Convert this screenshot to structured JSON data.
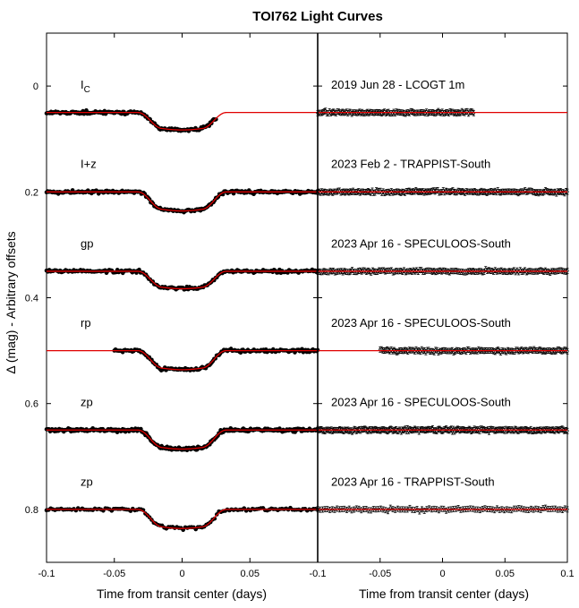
{
  "chart_data": {
    "type": "scatter",
    "title": "TOI762 Light Curves",
    "ylabel": "Δ (mag) - Arbitrary offsets",
    "ylim": [
      -0.1,
      0.9
    ],
    "y_inverted": true,
    "yticks": [
      "0",
      "0.2",
      "0.4",
      "0.6",
      "0.8"
    ],
    "panels": [
      {
        "name": "light curves",
        "xlabel": "Time from transit center (days)",
        "xlim": [
          -0.1,
          0.1
        ],
        "xticks": [
          "-0.1",
          "-0.05",
          "0",
          "0.05"
        ]
      },
      {
        "name": "residuals",
        "xlabel": "Time from transit center (days)",
        "xlim": [
          -0.1,
          0.1
        ],
        "xticks": [
          "-0.1",
          "-0.05",
          "0",
          "0.05",
          "0.1"
        ]
      }
    ],
    "transit_duration_days": 0.047,
    "transit_depth_mag": 0.035,
    "series": [
      {
        "band": "Iₑ",
        "band_main": "I",
        "band_sub": "C",
        "observation": "2019 Jun 28 - LCOGT 1m",
        "offset": 0.05,
        "depth": 0.033,
        "data_x_range": [
          -0.1,
          0.025
        ],
        "residual_x_range": [
          -0.1,
          0.025
        ],
        "points": 150
      },
      {
        "band": "I+z",
        "band_main": "I+z",
        "band_sub": "",
        "observation": "2023 Feb 2 - TRAPPIST-South",
        "offset": 0.2,
        "depth": 0.036,
        "data_x_range": [
          -0.1,
          0.1
        ],
        "residual_x_range": [
          -0.1,
          0.1
        ],
        "points": 230
      },
      {
        "band": "gp",
        "band_main": "gp",
        "band_sub": "",
        "observation": "2023 Apr 16 - SPECULOOS-South",
        "offset": 0.35,
        "depth": 0.033,
        "data_x_range": [
          -0.1,
          0.1
        ],
        "residual_x_range": [
          -0.1,
          0.1
        ],
        "points": 200
      },
      {
        "band": "rp",
        "band_main": "rp",
        "band_sub": "",
        "observation": "2023 Apr 16 - SPECULOOS-South",
        "offset": 0.5,
        "depth": 0.036,
        "data_x_range": [
          -0.05,
          0.1
        ],
        "residual_x_range": [
          -0.05,
          0.1
        ],
        "points": 170
      },
      {
        "band": "zp",
        "band_main": "zp",
        "band_sub": "",
        "observation": "2023 Apr 16 - SPECULOOS-South",
        "offset": 0.65,
        "depth": 0.036,
        "data_x_range": [
          -0.1,
          0.1
        ],
        "residual_x_range": [
          -0.1,
          0.1
        ],
        "points": 300
      },
      {
        "band": "zp",
        "band_main": "zp",
        "band_sub": "",
        "observation": "2023 Apr 16 - TRAPPIST-South",
        "offset": 0.8,
        "depth": 0.036,
        "data_x_range": [
          -0.1,
          0.1
        ],
        "residual_x_range": [
          -0.1,
          0.1
        ],
        "points": 130
      }
    ],
    "colors": {
      "model": "#e00000",
      "points": "#000000"
    }
  }
}
